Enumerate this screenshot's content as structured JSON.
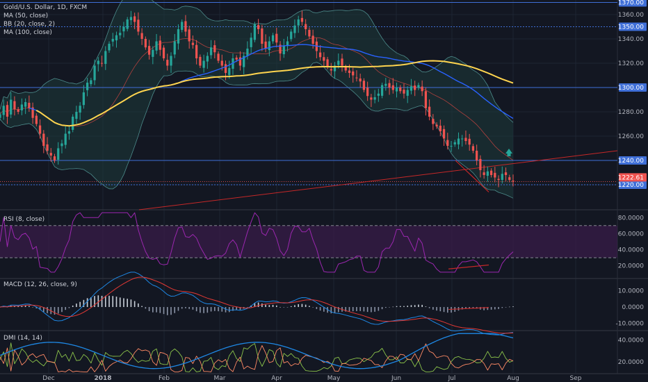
{
  "colors": {
    "background": "#131722",
    "grid": "#1e2433",
    "separator": "#2a2e39",
    "axis_text": "#b2b5be",
    "label_text": "#d1d4dc",
    "up": "#26a69a",
    "down": "#ef5350",
    "ma50": "#2962ff",
    "ma100": "#ffd54f",
    "bb_basis": "#b0413e",
    "bb_band": "#4d8c8c",
    "bb_fill": "#1d3a3a",
    "level_line": "#3f6fd8",
    "trend_line": "#c62828",
    "rsi_line": "#9c27b0",
    "rsi_band": "#3a1d4a",
    "macd_line": "#1e88e5",
    "signal_line": "#e53935",
    "hist_pos": "#c8cfd8",
    "hist_neg": "#8a93a6",
    "dmi_plus": "#8bc34a",
    "dmi_minus": "#ff8a65",
    "adx": "#1e88e5",
    "price_tag": "#ef5350",
    "arrow": "#26a69a"
  },
  "icons": {
    "up_arrow": "up-arrow-icon"
  },
  "main": {
    "title": "Gold/U.S. Dollar, 1D, FXCM",
    "legend": [
      "MA (50, close)",
      "BB (20, close, 2)",
      "MA (100, close)"
    ]
  },
  "rsi": {
    "title": "RSI (8, close)"
  },
  "macd": {
    "title": "MACD (12, 26, close, 9)"
  },
  "dmi": {
    "title": "DMI (14, 14)"
  },
  "chart_data": [
    {
      "type": "candlestick",
      "title": "Gold/U.S. Dollar, 1D, FXCM",
      "x_labels": [
        "Dec",
        "2018",
        "Feb",
        "Mar",
        "Apr",
        "May",
        "Jun",
        "Jul",
        "Aug",
        "Sep"
      ],
      "y_ticks": [
        1220,
        1240,
        1260,
        1280,
        1300,
        1320,
        1340,
        1360
      ],
      "ylim": [
        1200,
        1372
      ],
      "horizontal_levels": [
        1370,
        1350,
        1300,
        1240,
        1220
      ],
      "current_price": 1222.61,
      "closes": [
        1278,
        1285,
        1276,
        1290,
        1282,
        1280,
        1286,
        1288,
        1283,
        1275,
        1270,
        1262,
        1252,
        1248,
        1244,
        1240,
        1250,
        1254,
        1262,
        1264,
        1276,
        1280,
        1285,
        1296,
        1304,
        1306,
        1318,
        1322,
        1320,
        1330,
        1336,
        1340,
        1343,
        1345,
        1350,
        1356,
        1358,
        1354,
        1346,
        1340,
        1333,
        1327,
        1331,
        1338,
        1331,
        1324,
        1318,
        1326,
        1338,
        1348,
        1354,
        1346,
        1338,
        1335,
        1324,
        1318,
        1322,
        1326,
        1333,
        1329,
        1322,
        1318,
        1312,
        1316,
        1324,
        1323,
        1318,
        1326,
        1332,
        1341,
        1352,
        1348,
        1336,
        1332,
        1338,
        1343,
        1337,
        1328,
        1334,
        1338,
        1346,
        1351,
        1356,
        1354,
        1348,
        1342,
        1336,
        1330,
        1325,
        1322,
        1317,
        1314,
        1318,
        1322,
        1318,
        1314,
        1312,
        1310,
        1308,
        1305,
        1298,
        1293,
        1290,
        1292,
        1295,
        1302,
        1303,
        1300,
        1298,
        1300,
        1297,
        1295,
        1298,
        1301,
        1298,
        1302,
        1297,
        1283,
        1276,
        1270,
        1268,
        1264,
        1258,
        1252,
        1252,
        1255,
        1258,
        1258,
        1256,
        1253,
        1248,
        1240,
        1232,
        1228,
        1231,
        1228,
        1226,
        1224,
        1229,
        1228,
        1224,
        1222.61
      ]
    },
    {
      "type": "line",
      "title": "RSI (8, close)",
      "y_ticks": [
        20,
        40,
        60,
        80
      ],
      "tick_labels": [
        "20.0000",
        "40.0000",
        "60.0000",
        "80.0000"
      ],
      "ylim": [
        5,
        88
      ],
      "band": [
        30,
        70
      ]
    },
    {
      "type": "bar",
      "title": "MACD (12, 26, close, 9)",
      "y_ticks": [
        -10,
        0,
        10
      ],
      "tick_labels": [
        "-10.0000",
        "0.0000",
        "10.0000"
      ],
      "ylim": [
        -14,
        17
      ]
    },
    {
      "type": "line",
      "title": "DMI (14, 14)",
      "y_ticks": [
        20,
        40
      ],
      "tick_labels": [
        "20.0000",
        "40.0000"
      ],
      "ylim": [
        10,
        48
      ]
    }
  ]
}
